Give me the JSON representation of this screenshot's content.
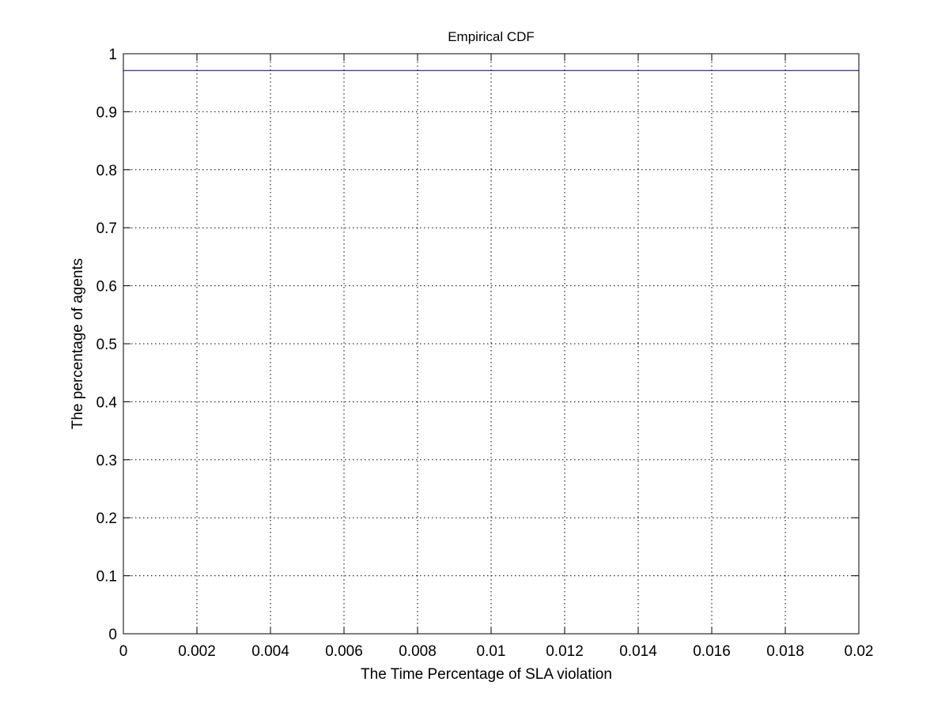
{
  "chart_data": {
    "type": "line",
    "title": "Empirical CDF",
    "xlabel": "The Time Percentage of SLA violation",
    "ylabel": "The percentage of agents",
    "xlim": [
      0,
      0.02
    ],
    "ylim": [
      0,
      1
    ],
    "x_ticks": [
      "0",
      "0.002",
      "0.004",
      "0.006",
      "0.008",
      "0.01",
      "0.012",
      "0.014",
      "0.016",
      "0.018",
      "0.02"
    ],
    "y_ticks": [
      "0",
      "0.1",
      "0.2",
      "0.3",
      "0.4",
      "0.5",
      "0.6",
      "0.7",
      "0.8",
      "0.9",
      "1"
    ],
    "grid": true,
    "series": [
      {
        "color": "#00007f",
        "x": [
          0,
          0.02
        ],
        "y": [
          0.971,
          0.971
        ]
      }
    ]
  }
}
